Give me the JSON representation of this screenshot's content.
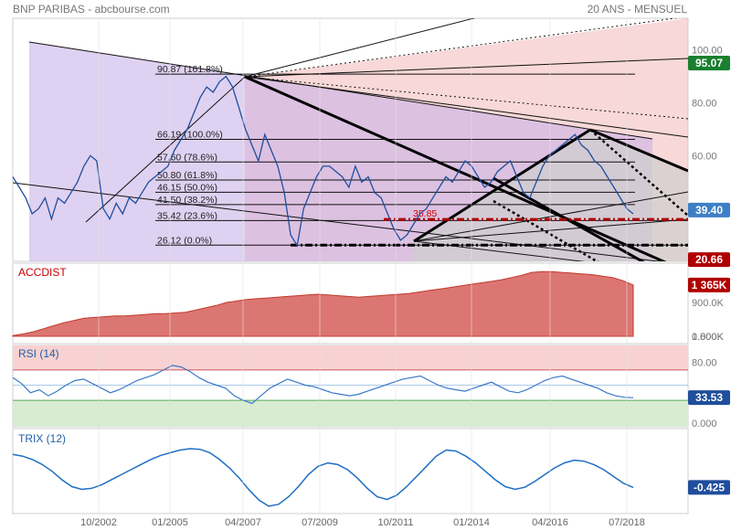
{
  "header": {
    "title": "BNP PARIBAS - abcbourse.com",
    "period": "20 ANS - MENSUEL"
  },
  "colors": {
    "price_line": "#1f4e9c",
    "accdist_fill": "#dc7672",
    "accdist_stroke": "#c0392b",
    "rsi_line": "#3a78c9",
    "trix_line": "#1e6fc4",
    "overbought_zone": "#f8d2d2",
    "oversold_zone": "#d8ecd2",
    "fan_pink": "#f3b8b8",
    "fan_purple": "#c9b3e8",
    "fan_grey": "#cfcfcf",
    "badge_green": "#1a7f2e",
    "badge_blue": "#3d7fc6",
    "badge_red": "#b00000"
  },
  "x_axis": {
    "ticks": [
      "10/2002",
      "01/2005",
      "04/2007",
      "07/2009",
      "10/2011",
      "01/2014",
      "04/2016",
      "07/2018"
    ]
  },
  "chart_data": [
    {
      "panel": "price",
      "type": "line",
      "y_ticks": [
        "100.00",
        "80.00",
        "60.00",
        "40.00"
      ],
      "ylim": [
        20,
        112
      ],
      "x_range": [
        "01/1999",
        "12/2018"
      ],
      "series": [
        {
          "values": [
            52,
            48,
            44,
            38,
            40,
            44,
            36,
            44,
            42,
            46,
            50,
            56,
            60,
            58,
            40,
            36,
            42,
            38,
            44,
            42,
            46,
            50,
            52,
            54,
            56,
            62,
            66,
            70,
            76,
            82,
            86,
            84,
            88,
            90,
            86,
            78,
            70,
            64,
            58,
            68,
            62,
            56,
            46,
            30,
            26,
            40,
            46,
            52,
            56,
            56,
            54,
            52,
            48,
            56,
            50,
            52,
            46,
            44,
            38,
            32,
            28,
            30,
            34,
            38,
            40,
            44,
            48,
            52,
            50,
            54,
            58,
            56,
            52,
            48,
            50,
            54,
            56,
            58,
            52,
            46,
            44,
            50,
            56,
            60,
            62,
            64,
            66,
            68,
            64,
            62,
            58,
            56,
            52,
            48,
            44,
            40,
            38
          ]
        }
      ],
      "fib_levels": [
        {
          "label": "90.87  (161.8%)",
          "value": 90.87
        },
        {
          "label": "66.19  (100.0%)",
          "value": 66.19
        },
        {
          "label": "57.60  (78.6%)",
          "value": 57.6
        },
        {
          "label": "50.80  (61.8%)",
          "value": 50.8
        },
        {
          "label": "46.15  (50.0%)",
          "value": 46.15
        },
        {
          "label": "41.50  (38.2%)",
          "value": 41.5
        },
        {
          "label": "35.42  (23.6%)",
          "value": 35.42
        },
        {
          "label": "26.12  (0.0%)",
          "value": 26.12
        }
      ],
      "annotation": {
        "label": "35.85",
        "value": 35.85
      },
      "badges": [
        {
          "label": "95.07",
          "value": 95.07,
          "color": "#1a7f2e"
        },
        {
          "label": "39.40",
          "value": 39.4,
          "color": "#3d7fc6"
        },
        {
          "label": "20.66",
          "value": 20.66,
          "color": "#b00000"
        }
      ]
    },
    {
      "panel": "accdist",
      "title": "ACCDIST",
      "type": "area",
      "y_ticks": [
        "1.800K",
        "900.0K",
        "0.000K"
      ],
      "ylim": [
        0,
        1800
      ],
      "badge": "1 365K",
      "series": [
        {
          "values": [
            20,
            60,
            120,
            200,
            280,
            360,
            420,
            480,
            500,
            520,
            540,
            540,
            560,
            580,
            600,
            600,
            620,
            640,
            700,
            760,
            820,
            900,
            940,
            980,
            1000,
            1020,
            1040,
            1060,
            1080,
            1100,
            1120,
            1100,
            1080,
            1060,
            1040,
            1060,
            1080,
            1100,
            1120,
            1140,
            1180,
            1220,
            1260,
            1300,
            1340,
            1380,
            1420,
            1460,
            1500,
            1560,
            1620,
            1700,
            1720,
            1720,
            1700,
            1680,
            1660,
            1640,
            1600,
            1560,
            1480,
            1365
          ]
        }
      ]
    },
    {
      "panel": "rsi",
      "title": "RSI (14)",
      "type": "line",
      "y_ticks": [
        "80.00",
        "0.000"
      ],
      "ylim": [
        0,
        100
      ],
      "overbought": 70,
      "oversold": 30,
      "badge": "33.53",
      "series": [
        {
          "values": [
            60,
            52,
            40,
            44,
            36,
            42,
            50,
            56,
            58,
            52,
            46,
            40,
            44,
            50,
            56,
            60,
            64,
            70,
            76,
            74,
            68,
            60,
            54,
            50,
            46,
            36,
            30,
            26,
            36,
            46,
            52,
            58,
            54,
            50,
            48,
            44,
            40,
            38,
            36,
            38,
            42,
            46,
            50,
            54,
            58,
            60,
            62,
            56,
            50,
            46,
            44,
            42,
            46,
            50,
            54,
            48,
            42,
            40,
            44,
            50,
            56,
            60,
            62,
            58,
            54,
            50,
            46,
            40,
            36,
            34,
            33.53
          ]
        }
      ]
    },
    {
      "panel": "trix",
      "title": "TRIX (12)",
      "type": "line",
      "badge": "-0.425",
      "series": [
        {
          "values": [
            0.55,
            0.5,
            0.4,
            0.25,
            0.05,
            -0.2,
            -0.4,
            -0.48,
            -0.45,
            -0.35,
            -0.2,
            -0.05,
            0.1,
            0.25,
            0.4,
            0.52,
            0.6,
            0.68,
            0.72,
            0.7,
            0.6,
            0.4,
            0.15,
            -0.15,
            -0.5,
            -0.8,
            -0.98,
            -0.92,
            -0.7,
            -0.4,
            -0.05,
            0.2,
            0.3,
            0.25,
            0.1,
            -0.15,
            -0.45,
            -0.7,
            -0.78,
            -0.65,
            -0.4,
            -0.1,
            0.2,
            0.5,
            0.68,
            0.65,
            0.5,
            0.3,
            0.05,
            -0.2,
            -0.4,
            -0.48,
            -0.42,
            -0.25,
            -0.05,
            0.15,
            0.3,
            0.38,
            0.35,
            0.25,
            0.1,
            -0.1,
            -0.3,
            -0.425
          ]
        }
      ]
    }
  ]
}
